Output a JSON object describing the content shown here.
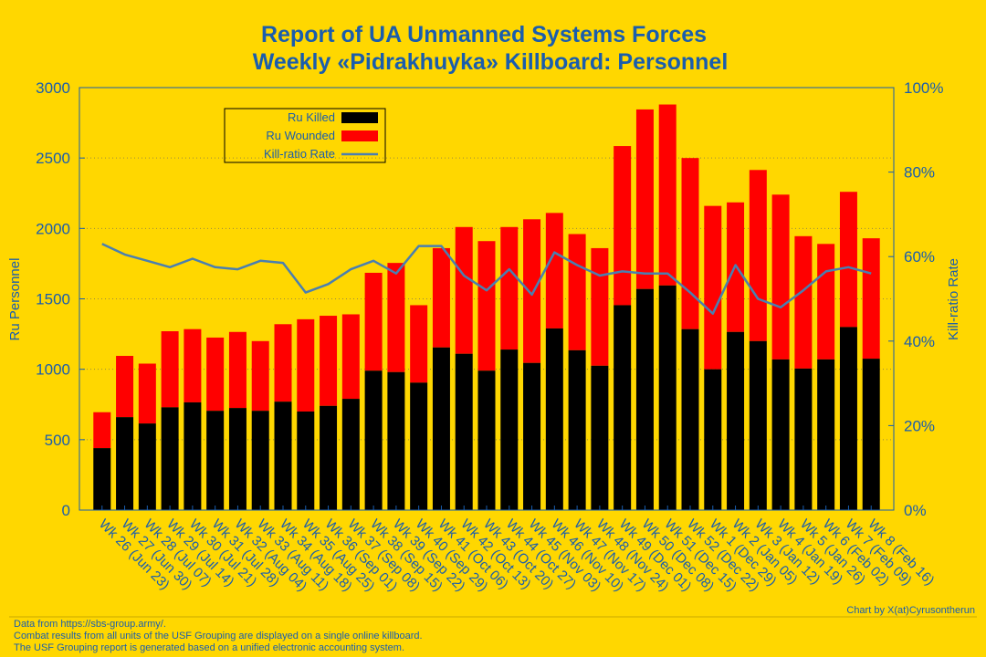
{
  "chart_data": {
    "type": "bar",
    "title_line1": "Report of UA Unmanned Systems Forces",
    "title_line2": "Weekly «Pidrakhuyka» Killboard: Personnel",
    "ylabel": "Ru Personnel",
    "y2label": "Kill-ratio Rate",
    "ylim": [
      0,
      3000
    ],
    "y2lim": [
      0,
      100
    ],
    "yticks": [
      "0",
      "500",
      "1000",
      "1500",
      "2000",
      "2500",
      "3000"
    ],
    "y2ticks": [
      "0%",
      "20%",
      "40%",
      "60%",
      "80%",
      "100%"
    ],
    "grid": "horizontal dotted",
    "legend_position": "top-left",
    "categories": [
      "Wk 26 (Jun 23)",
      "Wk 27 (Jun 30)",
      "Wk 28 (Jul 07)",
      "Wk 29 (Jul 14)",
      "Wk 30 (Jul 21)",
      "Wk 31 (Jul 28)",
      "Wk 32 (Aug 04)",
      "Wk 33 (Aug 11)",
      "Wk 34 (Aug 18)",
      "Wk 35 (Aug 25)",
      "Wk 36 (Sep 01)",
      "Wk 37 (Sep 08)",
      "Wk 38 (Sep 15)",
      "Wk 39 (Sep 22)",
      "Wk 40 (Sep 29)",
      "Wk 41 (Oct 06)",
      "Wk 42 (Oct 13)",
      "Wk 43 (Oct 20)",
      "Wk 44 (Oct 27)",
      "Wk 45 (Nov 03)",
      "Wk 46 (Nov 10)",
      "Wk 47 (Nov 17)",
      "Wk 48 (Nov 24)",
      "Wk 49 (Dec 01)",
      "Wk 50 (Dec 08)",
      "Wk 51 (Dec 15)",
      "Wk 52 (Dec 22)",
      "Wk 1 (Dec 29)",
      "Wk 2 (Jan 05)",
      "Wk 3 (Jan 12)",
      "Wk 4 (Jan 19)",
      "Wk 5 (Jan 26)",
      "Wk 6 (Feb 02)",
      "Wk 7 (Feb 09)",
      "Wk 8 (Feb 16)"
    ],
    "series": [
      {
        "name": "Ru Killed",
        "color": "#000000",
        "values": [
          440,
          660,
          615,
          730,
          765,
          705,
          725,
          705,
          770,
          700,
          740,
          790,
          990,
          980,
          905,
          1155,
          1110,
          990,
          1140,
          1045,
          1290,
          1135,
          1025,
          1455,
          1570,
          1595,
          1285,
          1000,
          1265,
          1200,
          1070,
          1005,
          1070,
          1300,
          1075
        ]
      },
      {
        "name": "Ru Wounded",
        "color": "#FF0000",
        "values": [
          255,
          435,
          425,
          540,
          520,
          520,
          540,
          495,
          550,
          655,
          640,
          600,
          695,
          775,
          550,
          705,
          900,
          920,
          870,
          1020,
          820,
          825,
          835,
          1130,
          1275,
          1285,
          1215,
          1160,
          920,
          1215,
          1170,
          940,
          820,
          960,
          855
        ]
      },
      {
        "name": "Kill-ratio Rate",
        "color": "#4A7FB0",
        "axis": "right",
        "values": [
          63,
          60.5,
          59,
          57.5,
          59.5,
          57.5,
          57,
          59,
          58.5,
          51.5,
          53.5,
          57,
          59,
          56,
          62.5,
          62.5,
          55.5,
          52,
          57,
          51,
          61,
          58,
          55.5,
          56.5,
          56,
          56,
          51.5,
          46.5,
          58,
          50,
          48,
          52,
          56.5,
          57.5,
          56
        ]
      }
    ]
  },
  "credit": "Chart by X(at)Cyrusontherun",
  "footer": {
    "line1": "Data from https://sbs-group.army/.",
    "line2": "Combat results from all units of the USF Grouping are displayed on a single online killboard.",
    "line3": "The USF Grouping report is generated based on a unified electronic accounting system."
  }
}
